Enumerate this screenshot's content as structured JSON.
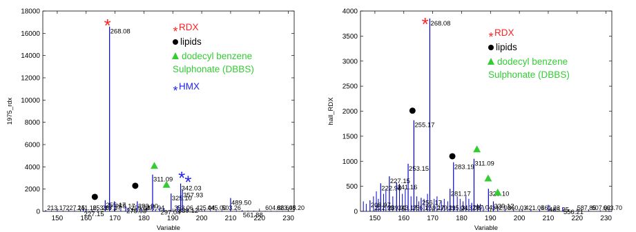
{
  "chart_data": [
    {
      "type": "bar",
      "subtype": "stem",
      "xlabel": "Variable",
      "ylabel": "1975_rdx",
      "xlim": [
        145,
        232
      ],
      "ylim": [
        0,
        18000
      ],
      "x_ticks": [
        150,
        160,
        170,
        180,
        190,
        200,
        210,
        220,
        230
      ],
      "y_ticks": [
        0,
        2000,
        4000,
        6000,
        8000,
        10000,
        12000,
        14000,
        16000,
        18000
      ],
      "grid": false,
      "stem_color": "#0000cc",
      "peaks": [
        {
          "x": 168.1,
          "y": 16600,
          "label": "268.08"
        },
        {
          "x": 166.6,
          "y": 1000,
          "label": "255.17"
        },
        {
          "x": 169.8,
          "y": 900,
          "label": "269.17"
        },
        {
          "x": 177.7,
          "y": 900,
          "label": "283.90"
        },
        {
          "x": 183.0,
          "y": 3300,
          "label": "311.09"
        },
        {
          "x": 185.5,
          "y": 350,
          "label": "297.04"
        },
        {
          "x": 189.4,
          "y": 1600,
          "label": "325.10"
        },
        {
          "x": 192.7,
          "y": 2500,
          "label": "342.03"
        },
        {
          "x": 193.3,
          "y": 1900,
          "label": "357.93"
        },
        {
          "x": 191.6,
          "y": 500,
          "label": "339.12"
        },
        {
          "x": 210.0,
          "y": 1200,
          "label": "489.50"
        },
        {
          "x": 214.0,
          "y": 100,
          "label": "561.88"
        },
        {
          "x": 173.7,
          "y": 450,
          "label": "275.03"
        },
        {
          "x": 159.0,
          "y": 200,
          "label": "227.15"
        }
      ],
      "minor_stems": [
        {
          "x": 146.0,
          "y": 120
        },
        {
          "x": 148.0,
          "y": 80
        },
        {
          "x": 150.0,
          "y": 150
        },
        {
          "x": 152.0,
          "y": 90
        },
        {
          "x": 154.0,
          "y": 130
        },
        {
          "x": 156.0,
          "y": 110
        },
        {
          "x": 158.0,
          "y": 160
        },
        {
          "x": 160.0,
          "y": 140
        },
        {
          "x": 162.0,
          "y": 180
        },
        {
          "x": 164.0,
          "y": 120
        },
        {
          "x": 172.0,
          "y": 260
        },
        {
          "x": 174.5,
          "y": 300
        },
        {
          "x": 176.0,
          "y": 200
        },
        {
          "x": 179.0,
          "y": 350
        },
        {
          "x": 181.0,
          "y": 280
        },
        {
          "x": 184.0,
          "y": 200
        },
        {
          "x": 187.0,
          "y": 300
        },
        {
          "x": 195.0,
          "y": 180
        },
        {
          "x": 197.0,
          "y": 150
        },
        {
          "x": 199.0,
          "y": 120
        },
        {
          "x": 201.0,
          "y": 130
        },
        {
          "x": 203.0,
          "y": 110
        },
        {
          "x": 205.0,
          "y": 100
        },
        {
          "x": 207.0,
          "y": 90
        },
        {
          "x": 212.0,
          "y": 80
        },
        {
          "x": 216.0,
          "y": 70
        },
        {
          "x": 218.0,
          "y": 60
        },
        {
          "x": 220.0,
          "y": 60
        },
        {
          "x": 222.0,
          "y": 50
        },
        {
          "x": 224.0,
          "y": 50
        },
        {
          "x": 226.0,
          "y": 40
        },
        {
          "x": 228.0,
          "y": 40
        },
        {
          "x": 230.0,
          "y": 40
        }
      ],
      "baseline_labels": [
        {
          "x": 146.5,
          "label": "213.17"
        },
        {
          "x": 153.0,
          "label": "227.15"
        },
        {
          "x": 157.0,
          "label": "241.16"
        },
        {
          "x": 162.3,
          "label": "253.15"
        },
        {
          "x": 165.5,
          "label": "267.17"
        },
        {
          "x": 175.5,
          "label": "299.04"
        },
        {
          "x": 180.5,
          "label": "297.04"
        },
        {
          "x": 190.5,
          "label": "353.06"
        },
        {
          "x": 198.0,
          "label": "425.04"
        },
        {
          "x": 202.0,
          "label": "445.00"
        },
        {
          "x": 207.0,
          "label": "503.26"
        },
        {
          "x": 222.0,
          "label": "604.86"
        },
        {
          "x": 226.0,
          "label": "623.08"
        },
        {
          "x": 229.0,
          "label": "645.20"
        }
      ],
      "markers": [
        {
          "shape": "asterisk",
          "color": "#ff2020",
          "x": 167.4,
          "y": 16900
        },
        {
          "shape": "circle",
          "color": "#000000",
          "x": 163.0,
          "y": 1300
        },
        {
          "shape": "circle",
          "color": "#000000",
          "x": 177.0,
          "y": 2300
        },
        {
          "shape": "triangle",
          "color": "#33cc33",
          "x": 183.6,
          "y": 4100
        },
        {
          "shape": "triangle",
          "color": "#33cc33",
          "x": 187.8,
          "y": 2400
        },
        {
          "shape": "asterisk",
          "color": "#2222ee",
          "x": 193.1,
          "y": 3200
        },
        {
          "shape": "asterisk",
          "color": "#2222ee",
          "x": 195.3,
          "y": 2800
        }
      ],
      "legend": [
        {
          "marker": "asterisk",
          "color": "#ff2020",
          "text": "RDX"
        },
        {
          "marker": "circle",
          "color": "#000000",
          "text": "lipids"
        },
        {
          "marker": "triangle",
          "color": "#33cc33",
          "text": "dodecyl benzene"
        },
        {
          "marker": "none",
          "color": "#33cc33",
          "text": "Sulphonate (DBBS)"
        },
        {
          "marker": "asterisk",
          "color": "#2222ee",
          "text": "HMX"
        }
      ]
    },
    {
      "type": "bar",
      "subtype": "stem",
      "xlabel": "Variable",
      "ylabel": "hall_RDX",
      "xlim": [
        145,
        232
      ],
      "ylim": [
        0,
        4000
      ],
      "x_ticks": [
        150,
        160,
        170,
        180,
        190,
        200,
        210,
        220,
        230
      ],
      "y_ticks": [
        0,
        500,
        1000,
        1500,
        2000,
        2500,
        3000,
        3500,
        4000
      ],
      "grid": false,
      "stem_color": "#0000cc",
      "peaks": [
        {
          "x": 169.0,
          "y": 3850,
          "label": "268.08"
        },
        {
          "x": 163.5,
          "y": 1820,
          "label": "255.17"
        },
        {
          "x": 177.2,
          "y": 980,
          "label": "283.19"
        },
        {
          "x": 184.3,
          "y": 1050,
          "label": "311.09"
        },
        {
          "x": 189.3,
          "y": 450,
          "label": "325.10"
        },
        {
          "x": 161.5,
          "y": 950,
          "label": "253.15"
        },
        {
          "x": 155.0,
          "y": 700,
          "label": "227.15"
        },
        {
          "x": 152.0,
          "y": 560,
          "label": "222.98"
        },
        {
          "x": 157.5,
          "y": 580,
          "label": "241.16"
        },
        {
          "x": 176.0,
          "y": 450,
          "label": "281.17"
        },
        {
          "x": 191.0,
          "y": 200,
          "label": "339.12"
        },
        {
          "x": 148.3,
          "y": 220,
          "label": "208.97"
        },
        {
          "x": 183.5,
          "y": 170,
          "label": "297.04"
        },
        {
          "x": 166.0,
          "y": 270,
          "label": "256.17"
        },
        {
          "x": 210.0,
          "y": 130,
          "label": "485.25"
        },
        {
          "x": 215.0,
          "y": 80,
          "label": "556.21"
        }
      ],
      "minor_stems": [
        {
          "x": 146.0,
          "y": 200
        },
        {
          "x": 147.0,
          "y": 150
        },
        {
          "x": 149.5,
          "y": 300
        },
        {
          "x": 150.5,
          "y": 400
        },
        {
          "x": 151.2,
          "y": 250
        },
        {
          "x": 153.0,
          "y": 350
        },
        {
          "x": 153.8,
          "y": 450
        },
        {
          "x": 156.2,
          "y": 300
        },
        {
          "x": 158.5,
          "y": 550
        },
        {
          "x": 159.5,
          "y": 350
        },
        {
          "x": 160.5,
          "y": 450
        },
        {
          "x": 162.5,
          "y": 300
        },
        {
          "x": 164.5,
          "y": 300
        },
        {
          "x": 165.2,
          "y": 200
        },
        {
          "x": 167.0,
          "y": 250
        },
        {
          "x": 168.2,
          "y": 350
        },
        {
          "x": 170.5,
          "y": 250
        },
        {
          "x": 171.5,
          "y": 300
        },
        {
          "x": 173.0,
          "y": 200
        },
        {
          "x": 174.0,
          "y": 250
        },
        {
          "x": 175.2,
          "y": 200
        },
        {
          "x": 178.5,
          "y": 300
        },
        {
          "x": 179.5,
          "y": 250
        },
        {
          "x": 180.5,
          "y": 200
        },
        {
          "x": 181.5,
          "y": 300
        },
        {
          "x": 182.5,
          "y": 250
        },
        {
          "x": 185.5,
          "y": 150
        },
        {
          "x": 186.5,
          "y": 150
        },
        {
          "x": 187.5,
          "y": 100
        },
        {
          "x": 192.5,
          "y": 80
        },
        {
          "x": 195.0,
          "y": 60
        },
        {
          "x": 198.0,
          "y": 50
        },
        {
          "x": 201.0,
          "y": 40
        },
        {
          "x": 204.0,
          "y": 40
        },
        {
          "x": 207.0,
          "y": 40
        },
        {
          "x": 212.0,
          "y": 50
        },
        {
          "x": 217.0,
          "y": 30
        },
        {
          "x": 220.0,
          "y": 30
        },
        {
          "x": 224.0,
          "y": 30
        },
        {
          "x": 228.0,
          "y": 20
        },
        {
          "x": 231.0,
          "y": 20
        }
      ],
      "baseline_labels": [
        {
          "x": 150.0,
          "label": "222.98"
        },
        {
          "x": 154.5,
          "label": "239.01"
        },
        {
          "x": 158.0,
          "label": "243.17"
        },
        {
          "x": 163.0,
          "label": "256.17"
        },
        {
          "x": 167.5,
          "label": "269.17"
        },
        {
          "x": 171.5,
          "label": "279.11"
        },
        {
          "x": 175.5,
          "label": "295.04"
        },
        {
          "x": 180.0,
          "label": "313.08"
        },
        {
          "x": 190.5,
          "label": "342.03"
        },
        {
          "x": 196.0,
          "label": "360.03"
        },
        {
          "x": 202.0,
          "label": "421.05"
        },
        {
          "x": 207.5,
          "label": "461.23"
        },
        {
          "x": 220.0,
          "label": "587.85"
        },
        {
          "x": 225.0,
          "label": "607.02"
        },
        {
          "x": 229.0,
          "label": "663.70"
        }
      ],
      "markers": [
        {
          "shape": "asterisk",
          "color": "#ff2020",
          "x": 167.4,
          "y": 3780
        },
        {
          "shape": "circle",
          "color": "#000000",
          "x": 163.0,
          "y": 2010
        },
        {
          "shape": "circle",
          "color": "#000000",
          "x": 176.8,
          "y": 1100
        },
        {
          "shape": "triangle",
          "color": "#33cc33",
          "x": 185.3,
          "y": 1240
        },
        {
          "shape": "triangle",
          "color": "#33cc33",
          "x": 189.2,
          "y": 660
        },
        {
          "shape": "triangle",
          "color": "#33cc33",
          "x": 192.5,
          "y": 380
        }
      ],
      "legend": [
        {
          "marker": "asterisk",
          "color": "#ff2020",
          "text": "RDX"
        },
        {
          "marker": "circle",
          "color": "#000000",
          "text": "lipids"
        },
        {
          "marker": "triangle",
          "color": "#33cc33",
          "text": "dodecyl benzene"
        },
        {
          "marker": "none",
          "color": "#33cc33",
          "text": "Sulphonate (DBBS)"
        }
      ]
    }
  ]
}
